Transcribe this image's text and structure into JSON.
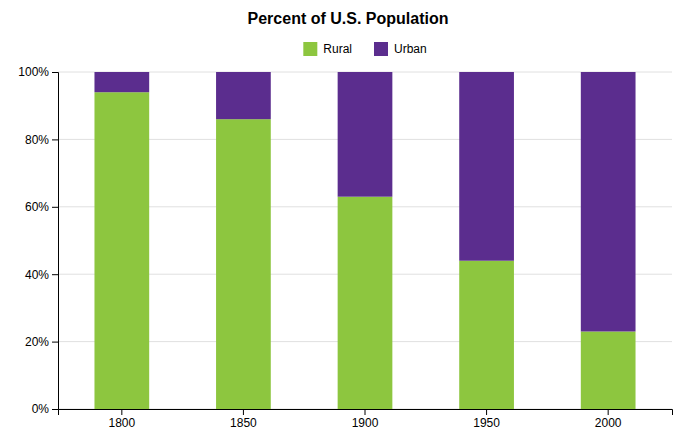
{
  "chart_data": {
    "type": "bar",
    "title": "Percent of U.S. Population",
    "categories": [
      "1800",
      "1850",
      "1900",
      "1950",
      "2000"
    ],
    "series": [
      {
        "name": "Rural",
        "color": "#8dc63f",
        "values": [
          94,
          86,
          63,
          44,
          23
        ]
      },
      {
        "name": "Urban",
        "color": "#5b2d8e",
        "values": [
          6,
          14,
          37,
          56,
          77
        ]
      }
    ],
    "stacked": true,
    "ylim": [
      0,
      100
    ],
    "yticks": [
      {
        "value": 0,
        "label": "0%"
      },
      {
        "value": 20,
        "label": "20%"
      },
      {
        "value": 40,
        "label": "40%"
      },
      {
        "value": 60,
        "label": "60%"
      },
      {
        "value": 80,
        "label": "80%"
      },
      {
        "value": 100,
        "label": "100%"
      }
    ],
    "grid": true,
    "legend": "top"
  }
}
